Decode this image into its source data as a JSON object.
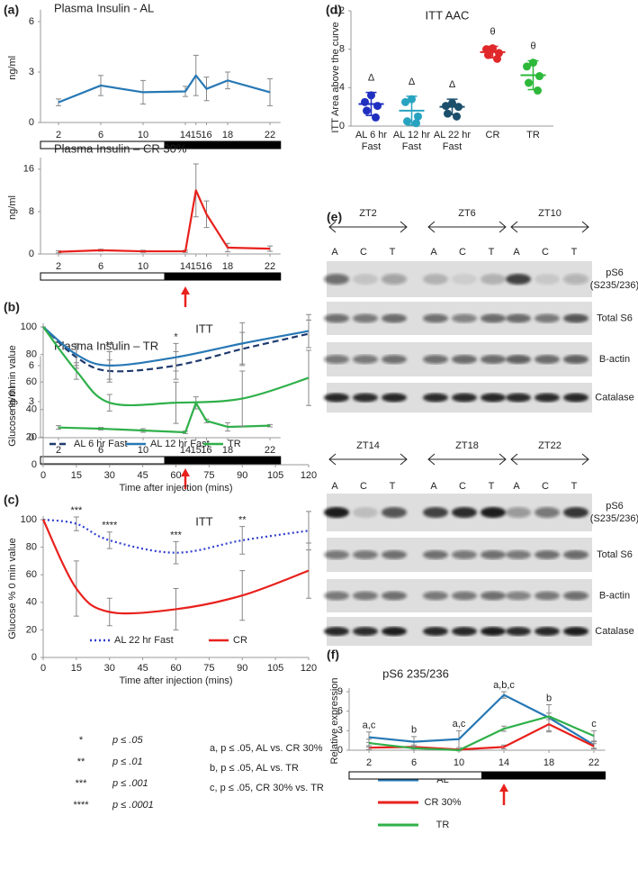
{
  "chart_data": [
    {
      "type": "line",
      "panel": "(a)",
      "title": "Plasma Insulin - AL",
      "ylabel": "ng/ml",
      "x": [
        2,
        6,
        10,
        14,
        15,
        16,
        18,
        22
      ],
      "xlim": [
        0,
        23
      ],
      "xticks": [
        2,
        6,
        10,
        14,
        15,
        16,
        18,
        22
      ],
      "ylim": [
        0,
        6.5
      ],
      "yticks": [
        0,
        3,
        6
      ],
      "dark_period": [
        12,
        23
      ],
      "series": [
        {
          "color": "#2778b5",
          "values": [
            1.2,
            2.2,
            1.8,
            1.85,
            2.8,
            2.0,
            2.5,
            1.8
          ],
          "errors": [
            0.2,
            0.6,
            0.7,
            0.3,
            1.2,
            0.7,
            0.5,
            0.8
          ]
        }
      ]
    },
    {
      "type": "line",
      "title": "Plasma Insulin – CR 30%",
      "ylabel": "ng/ml",
      "x": [
        2,
        6,
        10,
        14,
        15,
        16,
        18,
        22
      ],
      "xlim": [
        0,
        23
      ],
      "xticks": [
        2,
        6,
        10,
        14,
        15,
        16,
        18,
        22
      ],
      "ylim": [
        0,
        17.5
      ],
      "yticks": [
        0,
        8,
        16
      ],
      "dark_period": [
        12,
        23
      ],
      "arrow_x": 14,
      "series": [
        {
          "color": "#e8211d",
          "values": [
            0.4,
            0.7,
            0.5,
            0.5,
            12,
            7.5,
            1.2,
            1.0
          ],
          "errors": [
            0.2,
            0.2,
            0.2,
            0.2,
            5,
            2.5,
            0.8,
            0.5
          ]
        }
      ]
    },
    {
      "type": "line",
      "title": "Plasma Insulin – TR",
      "ylabel": "ng/ml",
      "x": [
        2,
        6,
        10,
        14,
        15,
        16,
        18,
        22
      ],
      "xlim": [
        0,
        23
      ],
      "xticks": [
        2,
        6,
        10,
        14,
        15,
        16,
        18,
        22
      ],
      "ylim": [
        0,
        6.5
      ],
      "yticks": [
        0,
        3,
        6
      ],
      "dark_period": [
        12,
        23
      ],
      "arrow_x": 14,
      "series": [
        {
          "color": "#2fb04a",
          "values": [
            0.85,
            0.75,
            0.6,
            0.45,
            2.9,
            1.4,
            0.9,
            1.0
          ],
          "errors": [
            0.15,
            0.1,
            0.15,
            0.1,
            0.5,
            0.15,
            0.35,
            0.1
          ]
        }
      ]
    },
    {
      "type": "line",
      "panel": "(b)",
      "title": "ITT",
      "ylabel": "Glucose % 0 min value",
      "xlabel": "Time after injection (mins)",
      "x": [
        0,
        15,
        30,
        60,
        90,
        120
      ],
      "xlim": [
        0,
        120
      ],
      "xticks": [
        0,
        15,
        30,
        45,
        60,
        75,
        90,
        105,
        120
      ],
      "ylim": [
        0,
        100
      ],
      "yticks": [
        0,
        20,
        40,
        60,
        80,
        100
      ],
      "smooth": true,
      "legend": "lower center",
      "annotations": [
        null,
        null,
        "**",
        "*",
        null,
        null
      ],
      "series": [
        {
          "name": "AL 6 hr Fast",
          "color": "#1f3a6e",
          "line_style": "dashed",
          "values": [
            100,
            78,
            68,
            72,
            84,
            95
          ],
          "errors": [
            0,
            8,
            8,
            10,
            12,
            10
          ]
        },
        {
          "name": "AL 12 hr Fast",
          "color": "#2778b5",
          "line_style": "solid",
          "values": [
            100,
            80,
            72,
            78,
            88,
            97
          ],
          "errors": [
            0,
            8,
            10,
            10,
            15,
            12
          ]
        },
        {
          "name": "TR",
          "color": "#2fb04a",
          "line_style": "solid",
          "values": [
            100,
            68,
            45,
            45,
            48,
            63
          ],
          "errors": [
            0,
            6,
            6,
            15,
            20,
            20
          ]
        }
      ]
    },
    {
      "type": "line",
      "panel": "(c)",
      "title": "ITT",
      "ylabel": "Glucose % 0 min value",
      "xlabel": "Time after injection (mins)",
      "x": [
        0,
        15,
        30,
        60,
        90,
        120
      ],
      "xlim": [
        0,
        120
      ],
      "xticks": [
        0,
        15,
        30,
        45,
        60,
        75,
        90,
        105,
        120
      ],
      "ylim": [
        0,
        100
      ],
      "yticks": [
        0,
        20,
        40,
        60,
        80,
        100
      ],
      "smooth": true,
      "legend": "lower center",
      "annotations": [
        null,
        "***",
        "****",
        "***",
        "**",
        null
      ],
      "series": [
        {
          "name": "AL 22 hr Fast",
          "color": "#2f3fd0",
          "line_style": "dotted",
          "values": [
            100,
            97,
            85,
            76,
            85,
            92
          ],
          "errors": [
            0,
            5,
            6,
            8,
            10,
            14
          ]
        },
        {
          "name": "CR",
          "color": "#e8211d",
          "line_style": "solid",
          "values": [
            100,
            50,
            33,
            35,
            45,
            63
          ],
          "errors": [
            0,
            20,
            10,
            15,
            18,
            20
          ]
        }
      ]
    },
    {
      "type": "scatter",
      "panel": "(d)",
      "title": "ITT AAC",
      "ylabel": "ITT Area above the curve",
      "categories": [
        "AL 6 hr Fast",
        "AL 12 hr Fast",
        "AL 22 hr Fast",
        "CR",
        "TR"
      ],
      "colors": [
        "#1f2fc0",
        "#27a3c0",
        "#1b4f6b",
        "#e0282a",
        "#2db83a"
      ],
      "ylim": [
        0,
        12
      ],
      "yticks": [
        0,
        4,
        8,
        12
      ],
      "values": [
        2.3,
        1.6,
        2.0,
        7.7,
        5.3
      ],
      "errors": [
        1.2,
        1.5,
        0.8,
        0.6,
        1.5
      ],
      "points": [
        [
          3.2,
          2.5,
          2.1,
          1.6,
          0.9
        ],
        [
          2.8,
          2.5,
          1.0,
          0.5,
          0.3
        ],
        [
          2.4,
          2.1,
          2.0,
          1.3,
          1.0
        ],
        [
          8.1,
          8.0,
          7.6,
          7.4,
          7.0
        ],
        [
          6.6,
          6.2,
          5.2,
          4.5,
          3.7
        ]
      ],
      "annotations": [
        "Δ",
        "Δ",
        "Δ",
        "θ",
        "θ"
      ]
    },
    {
      "type": "line",
      "panel": "(f)",
      "title": "pS6 235/236",
      "ylabel": "Relative expression",
      "x": [
        2,
        6,
        10,
        14,
        18,
        22
      ],
      "xlim": [
        0,
        23
      ],
      "xticks": [
        2,
        6,
        10,
        14,
        18,
        22
      ],
      "ylim": [
        0,
        9
      ],
      "yticks": [
        0,
        3,
        6,
        9
      ],
      "dark_period": [
        12,
        23
      ],
      "arrow_x": 14,
      "legend": "below",
      "annotations": [
        "a,c",
        "b",
        "a,c",
        "a,b,c",
        "b",
        "c"
      ],
      "series": [
        {
          "name": "AL",
          "color": "#2778b5",
          "values": [
            2.0,
            1.3,
            1.7,
            8.5,
            5.0,
            0.8
          ],
          "errors": [
            0.8,
            0.8,
            1.3,
            0.5,
            2.0,
            0.5
          ]
        },
        {
          "name": "CR 30%",
          "color": "#e8211d",
          "values": [
            0.4,
            0.5,
            0.1,
            0.5,
            4.0,
            0.6
          ],
          "errors": [
            0.3,
            0.3,
            0.1,
            0.3,
            1.2,
            0.4
          ]
        },
        {
          "name": "TR",
          "color": "#2fb04a",
          "values": [
            1.1,
            0.3,
            0.0,
            3.3,
            5.2,
            2.2
          ],
          "errors": [
            0.6,
            0.3,
            0.1,
            0.4,
            0.5,
            0.8
          ]
        }
      ]
    }
  ],
  "blot": {
    "panel": "(e)",
    "lanes": [
      "A",
      "C",
      "T"
    ],
    "rows": [
      [
        "pS6",
        "(S235/236)"
      ],
      [
        "Total S6"
      ],
      [
        "B-actin"
      ],
      [
        "Catalase"
      ]
    ],
    "sets": [
      {
        "groups": [
          "ZT2",
          "ZT6",
          "ZT10"
        ]
      },
      {
        "groups": [
          "ZT14",
          "ZT18",
          "ZT22"
        ]
      }
    ]
  },
  "notes": {
    "stars": [
      {
        "symbol": "*",
        "text": "p ≤ .05"
      },
      {
        "symbol": "**",
        "text": "p ≤ .01"
      },
      {
        "symbol": "***",
        "text": "p ≤ .001"
      },
      {
        "symbol": "****",
        "text": "p ≤ .0001"
      }
    ],
    "letters": [
      "a, p ≤ .05, AL vs. CR 30%",
      "b, p ≤ .05, AL vs. TR",
      "c, p ≤ .05, CR 30% vs. TR"
    ]
  }
}
